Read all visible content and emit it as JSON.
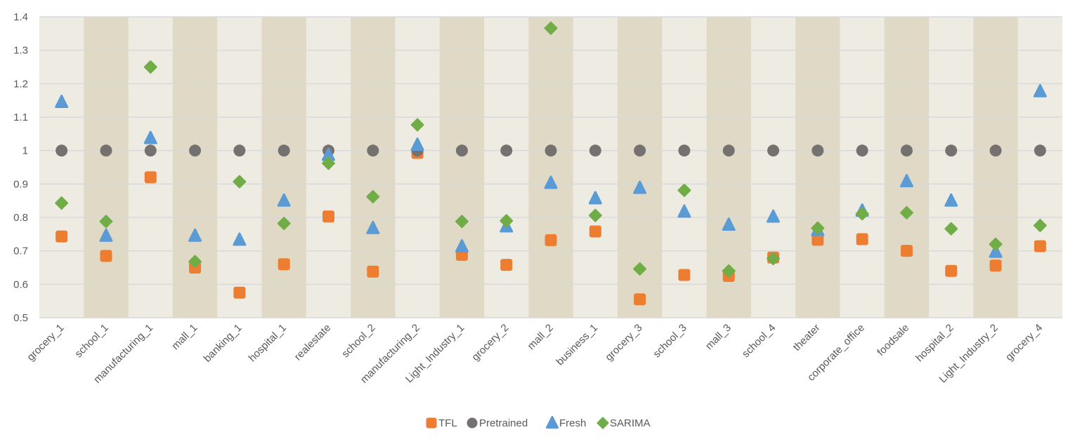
{
  "chart_data": {
    "type": "scatter",
    "title": "",
    "xlabel": "",
    "ylabel": "",
    "ylim": [
      0.5,
      1.4
    ],
    "y_ticks": [
      "0.5",
      "0.6",
      "0.7",
      "0.8",
      "0.9",
      "1",
      "1.1",
      "1.2",
      "1.3",
      "1.4"
    ],
    "grid": true,
    "legend_position": "bottom",
    "categories": [
      "grocery_1",
      "school_1",
      "manufacturing_1",
      "mall_1",
      "banking_1",
      "hospital_1",
      "realestate",
      "school_2",
      "manufacturing_2",
      "Light_Industry_1",
      "grocery_2",
      "mall_2",
      "business_1",
      "grocery_3",
      "school_3",
      "mall_3",
      "school_4",
      "theater",
      "corporate_office",
      "foodsale",
      "hospital_2",
      "Light_Industry_2",
      "grocery_4"
    ],
    "series": [
      {
        "name": "TFL",
        "marker": "square",
        "color": "#ED7D31",
        "values": [
          0.743,
          0.685,
          0.92,
          0.65,
          0.575,
          0.66,
          0.803,
          0.638,
          0.993,
          0.688,
          0.658,
          0.732,
          0.758,
          0.555,
          0.628,
          0.625,
          0.68,
          0.733,
          0.735,
          0.7,
          0.64,
          0.656,
          0.714
        ]
      },
      {
        "name": "Pretrained",
        "marker": "circle",
        "color": "#767171",
        "values": [
          1,
          1,
          1,
          1,
          1,
          1,
          1,
          1,
          1,
          1,
          1,
          1,
          1,
          1,
          1,
          1,
          1,
          1,
          1,
          1,
          1,
          1,
          1
        ]
      },
      {
        "name": "Fresh",
        "marker": "triangle",
        "color": "#5B9BD5",
        "values": [
          1.145,
          0.745,
          1.037,
          0.745,
          0.733,
          0.85,
          0.987,
          0.768,
          1.017,
          0.713,
          0.773,
          0.903,
          0.857,
          0.888,
          0.817,
          0.778,
          0.802,
          0.762,
          0.82,
          0.908,
          0.85,
          0.697,
          1.177
        ]
      },
      {
        "name": "SARIMA",
        "marker": "diamond",
        "color": "#70AD47",
        "values": [
          0.843,
          0.788,
          1.25,
          0.668,
          0.907,
          0.782,
          0.962,
          0.862,
          1.077,
          0.788,
          0.79,
          1.366,
          0.806,
          0.646,
          0.881,
          0.64,
          0.677,
          0.768,
          0.811,
          0.814,
          0.766,
          0.72,
          0.776
        ]
      }
    ]
  },
  "colors": {
    "plot_band_light": "#EEEBE2",
    "plot_band_dark": "#DFD9C6",
    "gridline": "#D9D9D9",
    "text": "#595959"
  }
}
